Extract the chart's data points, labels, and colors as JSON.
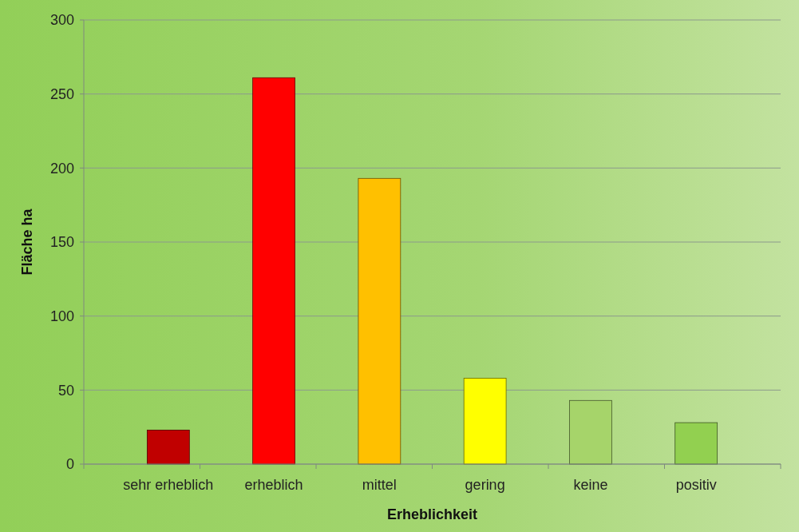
{
  "chart_data": {
    "type": "bar",
    "xlabel": "Erheblichkeit",
    "ylabel": "Fläche ha",
    "categories": [
      "sehr erheblich",
      "erheblich",
      "mittel",
      "gering",
      "keine",
      "positiv"
    ],
    "values": [
      23,
      261,
      193,
      58,
      43,
      28
    ],
    "colors": [
      "#c00000",
      "#ff0000",
      "#ffc000",
      "#ffff00",
      "#a6d46a",
      "#92d050"
    ],
    "ylim": [
      0,
      300
    ],
    "yticks": [
      0,
      50,
      100,
      150,
      200,
      250,
      300
    ],
    "grid": "y"
  }
}
